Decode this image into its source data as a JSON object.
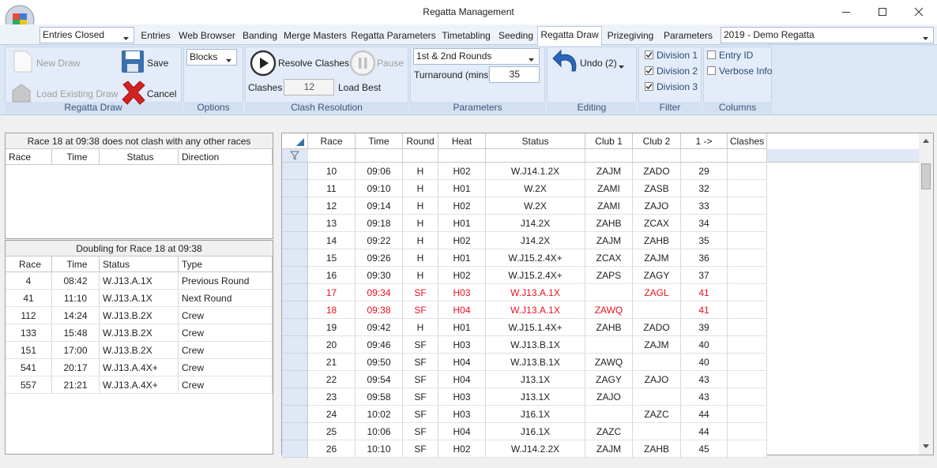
{
  "window": {
    "title": "Regatta Management"
  },
  "menu": {
    "status": "Entries Closed",
    "tabs": [
      "Entries",
      "Web Browser",
      "Banding",
      "Merge Masters",
      "Regatta Parameters",
      "Timetabling",
      "Seeding",
      "Regatta Draw",
      "Prizegiving",
      "Parameters"
    ],
    "regatta": "2019 - Demo Regatta"
  },
  "ribbon": {
    "regatta_draw": {
      "label": "Regatta Draw",
      "new_draw": "New Draw",
      "save": "Save",
      "load_existing_draw": "Load Existing Draw",
      "cancel": "Cancel"
    },
    "options": {
      "label": "Options",
      "mode": "Blocks"
    },
    "clash_resolution": {
      "label": "Clash Resolution",
      "resolve_clashes": "Resolve Clashes",
      "pause": "Pause",
      "clashes_label": "Clashes",
      "clashes_value": 12,
      "load_best": "Load Best"
    },
    "parameters": {
      "label": "Parameters",
      "rounds": "1st & 2nd Rounds",
      "turnaround_label": "Turnaround (mins)",
      "turnaround_value": 35
    },
    "editing": {
      "label": "Editing",
      "undo": "Undo (2)"
    },
    "filter": {
      "label": "Filter",
      "items": [
        {
          "text": "Division 1",
          "checked": true
        },
        {
          "text": "Division 2",
          "checked": true
        },
        {
          "text": "Division 3",
          "checked": true
        }
      ]
    },
    "columns": {
      "label": "Columns",
      "items": [
        {
          "text": "Entry ID",
          "checked": false
        },
        {
          "text": "Verbose Info",
          "checked": false
        }
      ]
    }
  },
  "clash_panel": {
    "caption": "Race 18 at 09:38 does not clash with any other races",
    "headers": [
      "Race",
      "Time",
      "Status",
      "Direction"
    ]
  },
  "doubling_panel": {
    "caption": "Doubling for Race 18 at 09:38",
    "headers": [
      "Race",
      "Time",
      "Status",
      "Type"
    ],
    "rows": [
      [
        4,
        "08:42",
        "W.J13.A.1X",
        "Previous Round"
      ],
      [
        41,
        "11:10",
        "W.J13.A.1X",
        "Next Round"
      ],
      [
        112,
        "14:24",
        "W.J13.B.2X",
        "Crew"
      ],
      [
        133,
        "15:48",
        "W.J13.B.2X",
        "Crew"
      ],
      [
        151,
        "17:00",
        "W.J13.B.2X",
        "Crew"
      ],
      [
        541,
        "20:17",
        "W.J13.A.4X+",
        "Crew"
      ],
      [
        557,
        "21:21",
        "W.J13.A.4X+",
        "Crew"
      ]
    ]
  },
  "draw_table": {
    "headers": [
      "Race",
      "Time",
      "Round",
      "Heat",
      "Status",
      "Club 1",
      "Club 2",
      "1 ->",
      "Clashes"
    ],
    "rows": [
      {
        "cells": [
          10,
          "09:06",
          "H",
          "H02",
          "W.J14.1.2X",
          "ZAJM",
          "ZADO",
          29
        ]
      },
      {
        "cells": [
          11,
          "09:10",
          "H",
          "H01",
          "W.2X",
          "ZAMI",
          "ZASB",
          32
        ]
      },
      {
        "cells": [
          12,
          "09:14",
          "H",
          "H02",
          "W.2X",
          "ZAMI",
          "ZAJO",
          33
        ]
      },
      {
        "cells": [
          13,
          "09:18",
          "H",
          "H01",
          "J14.2X",
          "ZAHB",
          "ZCAX",
          34
        ]
      },
      {
        "cells": [
          14,
          "09:22",
          "H",
          "H02",
          "J14.2X",
          "ZAJM",
          "ZAHB",
          35
        ]
      },
      {
        "cells": [
          15,
          "09:26",
          "H",
          "H01",
          "W.J15.2.4X+",
          "ZCAX",
          "ZAJM",
          36
        ]
      },
      {
        "cells": [
          16,
          "09:30",
          "H",
          "H02",
          "W.J15.2.4X+",
          "ZAPS",
          "ZAGY",
          37
        ]
      },
      {
        "cells": [
          17,
          "09:34",
          "SF",
          "H03",
          "W.J13.A.1X",
          null,
          "ZAGL",
          41
        ],
        "color": "#e81123"
      },
      {
        "cells": [
          18,
          "09:38",
          "SF",
          "H04",
          "W.J13.A.1X",
          "ZAWQ",
          null,
          41
        ],
        "color": "#e81123"
      },
      {
        "cells": [
          19,
          "09:42",
          "H",
          "H01",
          "W.J15.1.4X+",
          "ZAHB",
          "ZADO",
          39
        ]
      },
      {
        "cells": [
          20,
          "09:46",
          "SF",
          "H03",
          "W.J13.B.1X",
          null,
          "ZAJM",
          40
        ]
      },
      {
        "cells": [
          21,
          "09:50",
          "SF",
          "H04",
          "W.J13.B.1X",
          "ZAWQ",
          null,
          40
        ]
      },
      {
        "cells": [
          22,
          "09:54",
          "SF",
          "H04",
          "J13.1X",
          "ZAGY",
          "ZAJO",
          43
        ]
      },
      {
        "cells": [
          23,
          "09:58",
          "SF",
          "H03",
          "J13.1X",
          "ZAJO",
          null,
          43
        ]
      },
      {
        "cells": [
          24,
          "10:02",
          "SF",
          "H03",
          "J16.1X",
          null,
          "ZAZC",
          44
        ]
      },
      {
        "cells": [
          25,
          "10:06",
          "SF",
          "H04",
          "J16.1X",
          "ZAZC",
          null,
          44
        ]
      },
      {
        "cells": [
          26,
          "10:10",
          "SF",
          "H02",
          "W.J14.2.2X",
          "ZAJM",
          "ZAHB",
          45
        ]
      }
    ]
  }
}
